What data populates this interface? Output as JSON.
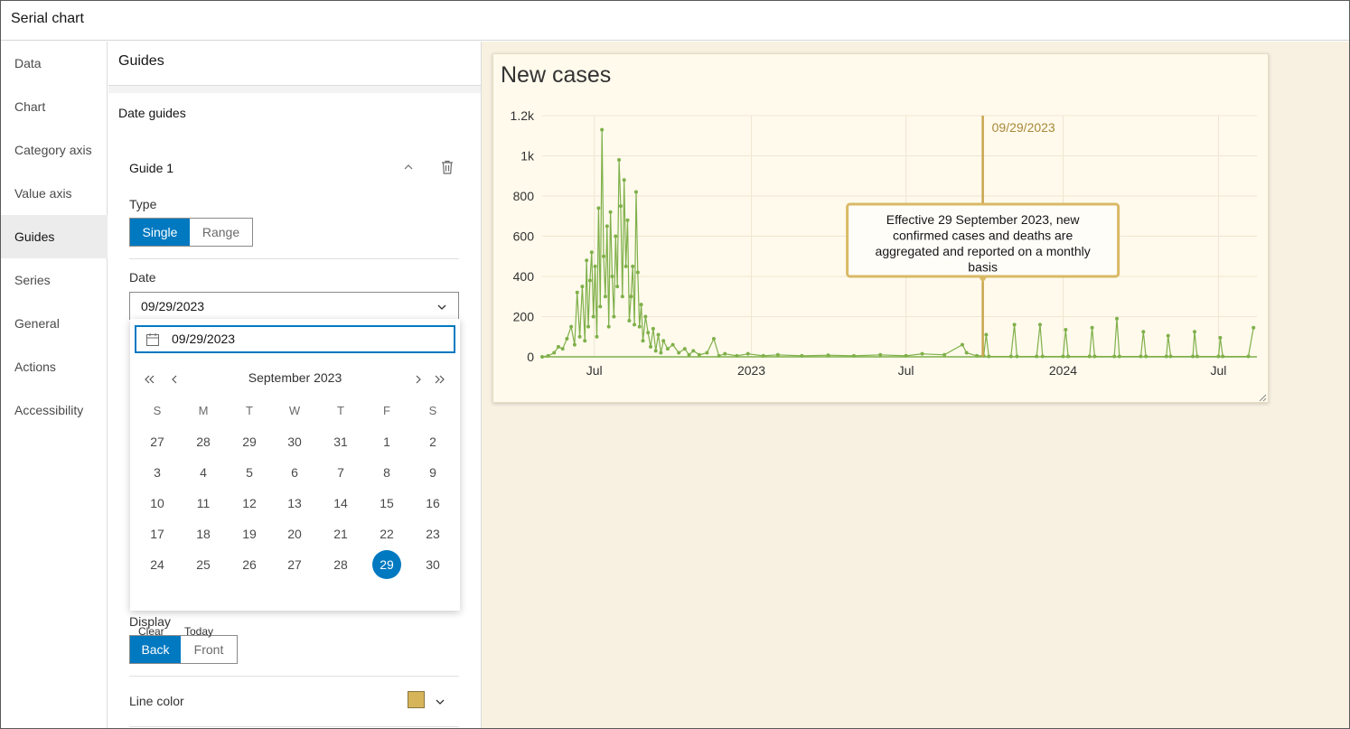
{
  "window": {
    "title": "Serial chart"
  },
  "nav": {
    "items": [
      {
        "label": "Data"
      },
      {
        "label": "Chart"
      },
      {
        "label": "Category axis"
      },
      {
        "label": "Value axis"
      },
      {
        "label": "Guides",
        "active": true
      },
      {
        "label": "Series"
      },
      {
        "label": "General"
      },
      {
        "label": "Actions"
      },
      {
        "label": "Accessibility"
      }
    ]
  },
  "panel": {
    "title": "Guides",
    "section": "Date guides",
    "guide": {
      "title": "Guide 1",
      "type_label": "Type",
      "type_options": [
        "Single",
        "Range"
      ],
      "type_selected": "Single",
      "date_label": "Date",
      "date_value": "09/29/2023",
      "display_label": "Display",
      "display_options": [
        "Back",
        "Front"
      ],
      "display_selected": "Back",
      "line_color_label": "Line color",
      "line_color": "#d6b45a"
    }
  },
  "datepicker": {
    "input_value": "09/29/2023",
    "month_label": "September 2023",
    "weekdays": [
      "S",
      "M",
      "T",
      "W",
      "T",
      "F",
      "S"
    ],
    "weeks": [
      [
        "27",
        "28",
        "29",
        "30",
        "31",
        "1",
        "2"
      ],
      [
        "3",
        "4",
        "5",
        "6",
        "7",
        "8",
        "9"
      ],
      [
        "10",
        "11",
        "12",
        "13",
        "14",
        "15",
        "16"
      ],
      [
        "17",
        "18",
        "19",
        "20",
        "21",
        "22",
        "23"
      ],
      [
        "24",
        "25",
        "26",
        "27",
        "28",
        "29",
        "30"
      ]
    ],
    "selected_day": "29",
    "clear_label": "Clear",
    "today_label": "Today"
  },
  "icons": {
    "collapse": "chevron-up-icon",
    "delete": "trash-icon",
    "dropdown": "chevron-down-icon",
    "calendar": "calendar-icon",
    "prev_year": "double-chevron-left-icon",
    "prev_month": "chevron-left-icon",
    "next_month": "chevron-right-icon",
    "next_year": "double-chevron-right-icon",
    "resize": "resize-handle-icon"
  },
  "colors": {
    "accent": "#0079c1",
    "series": "#7fb04a",
    "guide": "#c9a44f",
    "canvas_bg": "#f8f1e2",
    "card_bg": "#fffaec"
  },
  "chart_data": {
    "type": "line",
    "title": "New cases",
    "xlabel": "",
    "ylabel": "",
    "ylim": [
      0,
      1200
    ],
    "y_ticks": [
      0,
      200,
      400,
      600,
      800,
      1000,
      1200
    ],
    "y_tick_labels": [
      "0",
      "200",
      "400",
      "600",
      "800",
      "1k",
      "1.2k"
    ],
    "x_range": [
      "2022-05-01",
      "2024-08-15"
    ],
    "x_ticks": [
      {
        "date": "2022-07-01",
        "label": "Jul"
      },
      {
        "date": "2023-01-01",
        "label": "2023"
      },
      {
        "date": "2023-07-01",
        "label": "Jul"
      },
      {
        "date": "2024-01-01",
        "label": "2024"
      },
      {
        "date": "2024-07-01",
        "label": "Jul"
      }
    ],
    "guide": {
      "date": "2023-09-29",
      "label": "09/29/2023",
      "annotation": "Effective 29 September 2023, new confirmed cases and deaths are aggregated and reported on a monthly basis"
    },
    "series": [
      {
        "name": "New cases",
        "points": [
          [
            "2022-05-01",
            0
          ],
          [
            "2022-05-08",
            5
          ],
          [
            "2022-05-15",
            20
          ],
          [
            "2022-05-20",
            50
          ],
          [
            "2022-05-25",
            40
          ],
          [
            "2022-05-30",
            90
          ],
          [
            "2022-06-04",
            150
          ],
          [
            "2022-06-08",
            60
          ],
          [
            "2022-06-11",
            320
          ],
          [
            "2022-06-14",
            100
          ],
          [
            "2022-06-17",
            350
          ],
          [
            "2022-06-20",
            80
          ],
          [
            "2022-06-22",
            480
          ],
          [
            "2022-06-24",
            150
          ],
          [
            "2022-06-26",
            380
          ],
          [
            "2022-06-28",
            520
          ],
          [
            "2022-06-30",
            200
          ],
          [
            "2022-07-02",
            450
          ],
          [
            "2022-07-04",
            100
          ],
          [
            "2022-07-06",
            740
          ],
          [
            "2022-07-08",
            250
          ],
          [
            "2022-07-10",
            1130
          ],
          [
            "2022-07-12",
            500
          ],
          [
            "2022-07-14",
            300
          ],
          [
            "2022-07-16",
            650
          ],
          [
            "2022-07-18",
            150
          ],
          [
            "2022-07-20",
            720
          ],
          [
            "2022-07-22",
            400
          ],
          [
            "2022-07-24",
            200
          ],
          [
            "2022-07-26",
            600
          ],
          [
            "2022-07-28",
            350
          ],
          [
            "2022-07-30",
            980
          ],
          [
            "2022-08-01",
            750
          ],
          [
            "2022-08-03",
            300
          ],
          [
            "2022-08-05",
            880
          ],
          [
            "2022-08-07",
            450
          ],
          [
            "2022-08-09",
            680
          ],
          [
            "2022-08-11",
            180
          ],
          [
            "2022-08-13",
            300
          ],
          [
            "2022-08-15",
            450
          ],
          [
            "2022-08-17",
            160
          ],
          [
            "2022-08-19",
            820
          ],
          [
            "2022-08-21",
            420
          ],
          [
            "2022-08-23",
            150
          ],
          [
            "2022-08-25",
            260
          ],
          [
            "2022-08-27",
            80
          ],
          [
            "2022-08-30",
            200
          ],
          [
            "2022-09-02",
            120
          ],
          [
            "2022-09-05",
            50
          ],
          [
            "2022-09-08",
            140
          ],
          [
            "2022-09-11",
            30
          ],
          [
            "2022-09-14",
            110
          ],
          [
            "2022-09-17",
            20
          ],
          [
            "2022-09-20",
            80
          ],
          [
            "2022-09-25",
            40
          ],
          [
            "2022-10-01",
            60
          ],
          [
            "2022-10-08",
            20
          ],
          [
            "2022-10-15",
            40
          ],
          [
            "2022-10-20",
            10
          ],
          [
            "2022-10-25",
            30
          ],
          [
            "2022-11-01",
            10
          ],
          [
            "2022-11-10",
            20
          ],
          [
            "2022-11-18",
            90
          ],
          [
            "2022-11-24",
            5
          ],
          [
            "2022-12-01",
            15
          ],
          [
            "2022-12-15",
            5
          ],
          [
            "2022-12-28",
            15
          ],
          [
            "2023-01-15",
            5
          ],
          [
            "2023-02-01",
            10
          ],
          [
            "2023-03-01",
            5
          ],
          [
            "2023-04-01",
            8
          ],
          [
            "2023-05-01",
            5
          ],
          [
            "2023-06-01",
            10
          ],
          [
            "2023-07-01",
            5
          ],
          [
            "2023-07-20",
            15
          ],
          [
            "2023-08-15",
            10
          ],
          [
            "2023-09-05",
            60
          ],
          [
            "2023-09-10",
            20
          ],
          [
            "2023-09-22",
            5
          ],
          [
            "2023-09-30",
            5
          ],
          [
            "2023-10-03",
            110
          ],
          [
            "2023-10-06",
            2
          ],
          [
            "2023-11-01",
            2
          ],
          [
            "2023-11-05",
            160
          ],
          [
            "2023-11-08",
            2
          ],
          [
            "2023-12-01",
            2
          ],
          [
            "2023-12-05",
            160
          ],
          [
            "2023-12-08",
            2
          ],
          [
            "2024-01-01",
            2
          ],
          [
            "2024-01-04",
            135
          ],
          [
            "2024-01-07",
            2
          ],
          [
            "2024-02-01",
            2
          ],
          [
            "2024-02-04",
            145
          ],
          [
            "2024-02-07",
            2
          ],
          [
            "2024-03-01",
            2
          ],
          [
            "2024-03-04",
            190
          ],
          [
            "2024-03-07",
            2
          ],
          [
            "2024-04-01",
            2
          ],
          [
            "2024-04-04",
            125
          ],
          [
            "2024-04-07",
            2
          ],
          [
            "2024-05-01",
            2
          ],
          [
            "2024-05-03",
            105
          ],
          [
            "2024-05-06",
            2
          ],
          [
            "2024-06-01",
            2
          ],
          [
            "2024-06-03",
            125
          ],
          [
            "2024-06-06",
            2
          ],
          [
            "2024-07-01",
            2
          ],
          [
            "2024-07-03",
            95
          ],
          [
            "2024-07-06",
            2
          ],
          [
            "2024-08-05",
            2
          ],
          [
            "2024-08-11",
            145
          ]
        ]
      }
    ]
  }
}
